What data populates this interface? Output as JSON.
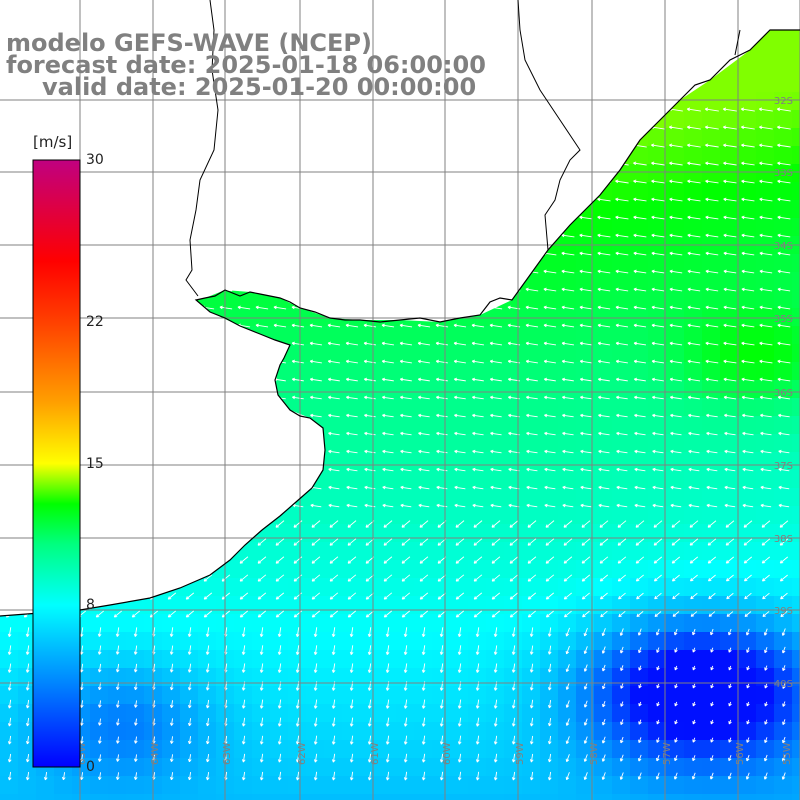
{
  "title": {
    "line1": "modelo GEFS-WAVE (NCEP)",
    "line2": "forecast date: 2025-01-18 06:00:00",
    "line3": "valid date: 2025-01-20 00:00:00"
  },
  "colorbar": {
    "unit": "[m/s]",
    "min": 0,
    "max": 30,
    "ticks": [
      {
        "value": 30,
        "label": "30"
      },
      {
        "value": 22,
        "label": "22"
      },
      {
        "value": 15,
        "label": "15"
      },
      {
        "value": 8,
        "label": "8"
      },
      {
        "value": 0,
        "label": "0"
      }
    ],
    "stops": [
      {
        "v": 0,
        "color": "#0000ff"
      },
      {
        "v": 4,
        "color": "#0080ff"
      },
      {
        "v": 8,
        "color": "#00ffff"
      },
      {
        "v": 11,
        "color": "#00ff80"
      },
      {
        "v": 13,
        "color": "#00ff00"
      },
      {
        "v": 15,
        "color": "#ffff00"
      },
      {
        "v": 18,
        "color": "#ffa000"
      },
      {
        "v": 22,
        "color": "#ff4000"
      },
      {
        "v": 25,
        "color": "#ff0000"
      },
      {
        "v": 30,
        "color": "#c00080"
      }
    ]
  },
  "latitude_labels": [
    "32S",
    "33S",
    "34S",
    "35S",
    "36S",
    "37S",
    "38S",
    "39S",
    "40S"
  ],
  "longitude_labels": [
    "65W",
    "64W",
    "63W",
    "62W",
    "61W",
    "60W",
    "59W",
    "58W",
    "57W",
    "56W",
    "55W"
  ],
  "map": {
    "land_color": "#ffffff",
    "grid_color": "#808080",
    "coast_color": "#000000",
    "arrow_color": "#ffffff"
  }
}
